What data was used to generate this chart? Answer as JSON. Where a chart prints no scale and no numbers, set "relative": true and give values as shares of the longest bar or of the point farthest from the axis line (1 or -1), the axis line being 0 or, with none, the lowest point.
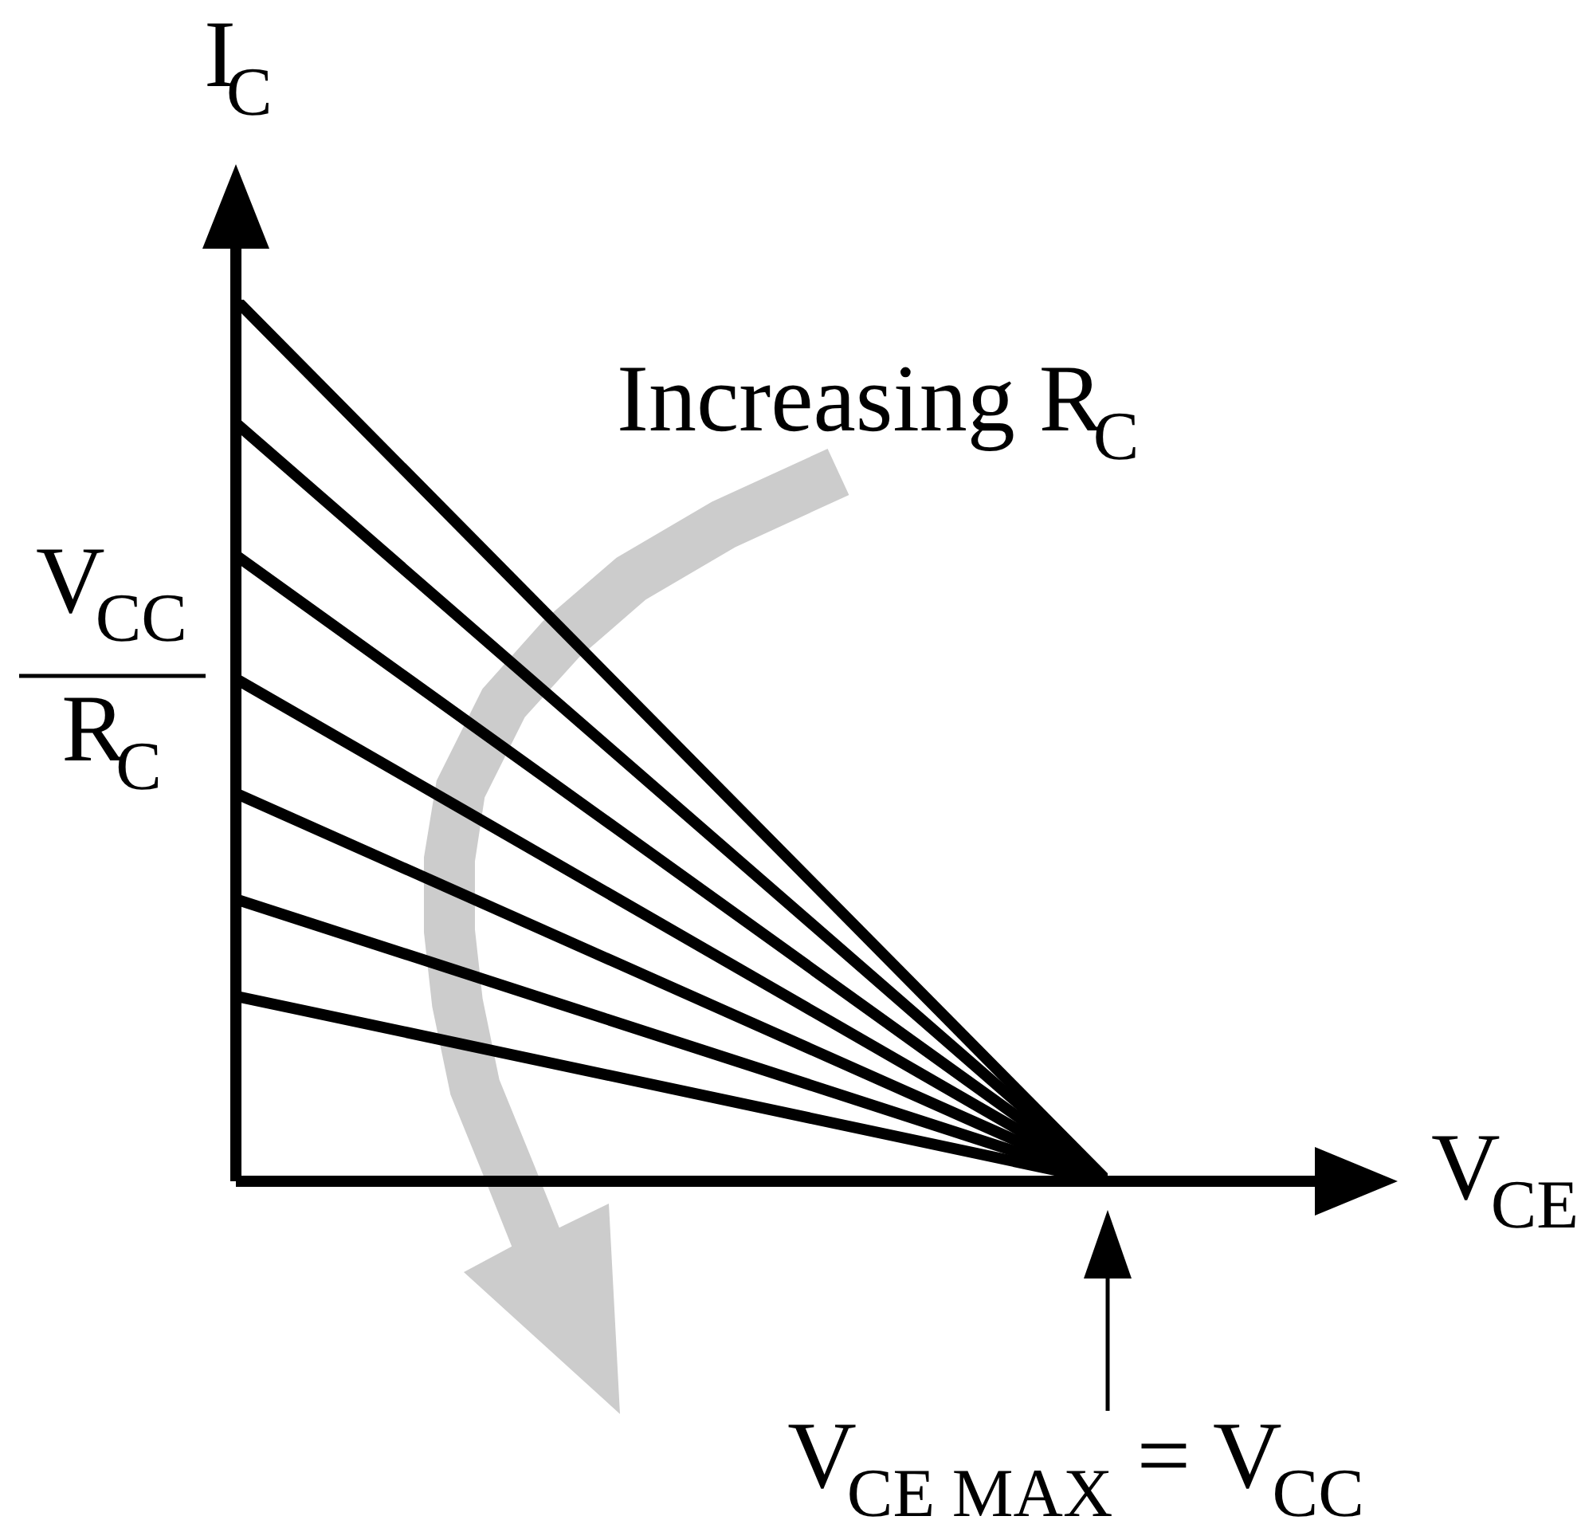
{
  "chart_data": {
    "type": "line",
    "xlabel": "V$_{CE}$",
    "ylabel": "I$_{C}$",
    "categories": [
      null,
      null
    ],
    "relative": true,
    "series": [
      {
        "color": "#000000",
        "values": [
          1,
          0
        ]
      },
      {
        "color": "#000000",
        "values": [
          0.86,
          0
        ]
      },
      {
        "color": "#000000",
        "values": [
          0.71,
          0
        ]
      },
      {
        "color": "#000000",
        "values": [
          0.57,
          0
        ]
      },
      {
        "color": "#000000",
        "values": [
          0.44,
          0
        ]
      },
      {
        "color": "#000000",
        "values": [
          0.32,
          0
        ]
      },
      {
        "color": "#000000",
        "values": [
          0.21,
          0
        ]
      }
    ],
    "annotations": [
      "V$_{CC}$",
      "R$_{C}$",
      "Increasing R$_{C}$",
      "V$_{CE MAX}$ = V$_{CC}$"
    ]
  }
}
